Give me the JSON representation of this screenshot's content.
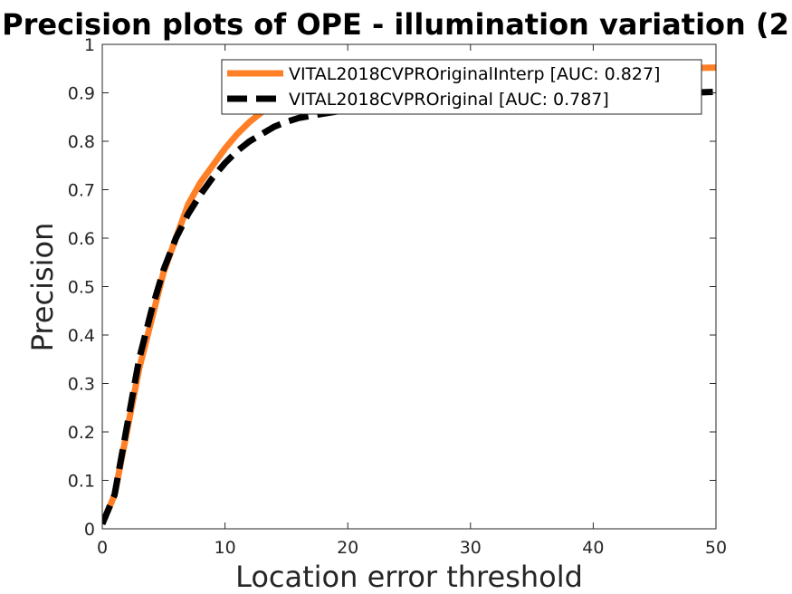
{
  "chart_data": {
    "type": "line",
    "title": "Precision plots of OPE - illumination variation (2",
    "xlabel": "Location error threshold",
    "ylabel": "Precision",
    "xlim": [
      0,
      50
    ],
    "ylim": [
      0,
      1
    ],
    "x_ticks": [
      "0",
      "10",
      "20",
      "30",
      "40",
      "50"
    ],
    "y_ticks": [
      "0",
      "0.1",
      "0.2",
      "0.3",
      "0.4",
      "0.5",
      "0.6",
      "0.7",
      "0.8",
      "0.9",
      "1"
    ],
    "grid": false,
    "legend_position": "top-right",
    "series": [
      {
        "name": "VITAL2018CVPROriginalInterp [AUC: 0.827]",
        "color": "#ff7f27",
        "style": "solid",
        "x": [
          0,
          1,
          2,
          3,
          4,
          5,
          6,
          7,
          8,
          9,
          10,
          11,
          12,
          13,
          14,
          15,
          16,
          18,
          20,
          25,
          30,
          35,
          40,
          45,
          50
        ],
        "y": [
          0.01,
          0.07,
          0.2,
          0.33,
          0.43,
          0.53,
          0.6,
          0.67,
          0.715,
          0.75,
          0.785,
          0.815,
          0.84,
          0.86,
          0.875,
          0.885,
          0.895,
          0.905,
          0.915,
          0.925,
          0.935,
          0.94,
          0.945,
          0.95,
          0.952
        ]
      },
      {
        "name": "VITAL2018CVPROriginal [AUC: 0.787]",
        "color": "#000000",
        "style": "dashed",
        "x": [
          0,
          1,
          2,
          3,
          4,
          5,
          6,
          7,
          8,
          9,
          10,
          11,
          12,
          13,
          14,
          15,
          16,
          18,
          20,
          25,
          30,
          35,
          40,
          45,
          50
        ],
        "y": [
          0.01,
          0.07,
          0.21,
          0.35,
          0.45,
          0.535,
          0.6,
          0.65,
          0.69,
          0.725,
          0.755,
          0.78,
          0.8,
          0.815,
          0.83,
          0.84,
          0.848,
          0.857,
          0.865,
          0.875,
          0.882,
          0.888,
          0.893,
          0.898,
          0.902
        ]
      }
    ]
  }
}
